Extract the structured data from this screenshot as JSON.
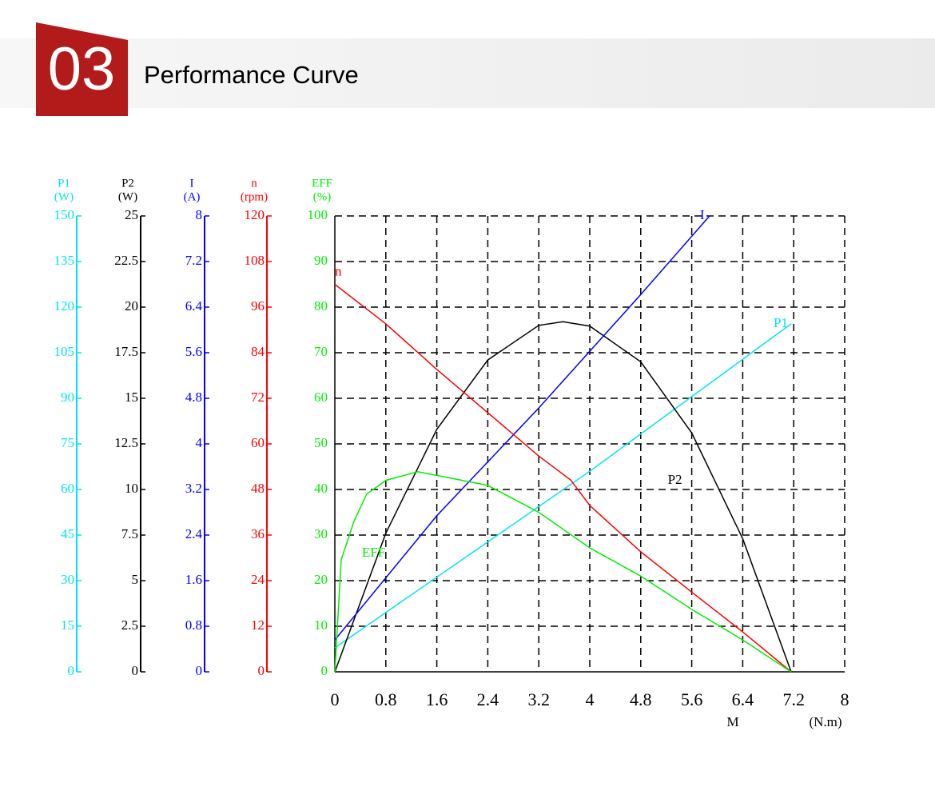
{
  "header": {
    "number": "03",
    "title": "Performance Curve"
  },
  "chart_data": {
    "type": "line",
    "xlabel": "M",
    "xunit": "(N.m)",
    "xlim": [
      0,
      8
    ],
    "xticks": [
      0,
      0.8,
      1.6,
      2.4,
      3.2,
      4,
      4.8,
      5.6,
      6.4,
      7.2,
      8
    ],
    "grid": true,
    "axes": [
      {
        "name": "P1",
        "unit": "(W)",
        "color": "#00e5ee",
        "lim": [
          0,
          150
        ],
        "ticks": [
          0,
          15,
          30,
          45,
          60,
          75,
          90,
          105,
          120,
          135,
          150
        ]
      },
      {
        "name": "P2",
        "unit": "(W)",
        "color": "#000000",
        "lim": [
          0,
          25
        ],
        "ticks": [
          0,
          2.5,
          5,
          7.5,
          10,
          12.5,
          15,
          17.5,
          20,
          22.5,
          25
        ]
      },
      {
        "name": "I",
        "unit": "(A)",
        "color": "#0000ff",
        "lim": [
          0,
          8
        ],
        "ticks": [
          0,
          0.8,
          1.6,
          2.4,
          3.2,
          4,
          4.8,
          5.6,
          6.4,
          7.2,
          8
        ]
      },
      {
        "name": "n",
        "unit": "(rpm)",
        "color": "#ff0000",
        "lim": [
          0,
          120
        ],
        "ticks": [
          0,
          12,
          24,
          36,
          48,
          60,
          72,
          84,
          96,
          108,
          120
        ]
      },
      {
        "name": "EFF",
        "unit": "(%)",
        "color": "#00ee00",
        "lim": [
          0,
          100
        ],
        "ticks": [
          0,
          10,
          20,
          30,
          40,
          50,
          60,
          70,
          80,
          90,
          100
        ]
      }
    ],
    "series": [
      {
        "name": "P1",
        "axis": 0,
        "color": "#00e5ee",
        "x": [
          0,
          4,
          7.16
        ],
        "values": [
          7.9,
          66,
          114.5
        ]
      },
      {
        "name": "P2",
        "axis": 1,
        "color": "#000000",
        "x": [
          0,
          0.8,
          1.6,
          2.4,
          3.2,
          3.58,
          4,
          4.8,
          5.6,
          6.4,
          7.16
        ],
        "values": [
          0,
          7.6,
          13.3,
          17.1,
          19,
          19.2,
          18.96,
          17,
          13.1,
          7.3,
          0
        ]
      },
      {
        "name": "I",
        "axis": 2,
        "color": "#0000ff",
        "x": [
          0,
          1.6,
          3.2,
          4.8,
          5.88
        ],
        "values": [
          0.56,
          2.74,
          4.63,
          6.62,
          8
        ]
      },
      {
        "name": "n",
        "axis": 3,
        "color": "#ff0000",
        "x": [
          0,
          0.8,
          1.6,
          3.2,
          3.7,
          4,
          4.8,
          5.6,
          6.4,
          7.16
        ],
        "values": [
          102,
          91.6,
          79.6,
          56.8,
          50.5,
          43.8,
          31.6,
          21,
          10.5,
          0
        ]
      },
      {
        "name": "EFF",
        "axis": 4,
        "color": "#00ee00",
        "x": [
          0,
          0.1,
          0.3,
          0.5,
          0.8,
          1.3,
          2,
          2.4,
          3.2,
          4,
          4.8,
          5.6,
          6.4,
          7.16
        ],
        "values": [
          0,
          24.6,
          33,
          39,
          42,
          43.9,
          42,
          40.9,
          35,
          27.2,
          21,
          13.7,
          7,
          0
        ]
      }
    ]
  }
}
